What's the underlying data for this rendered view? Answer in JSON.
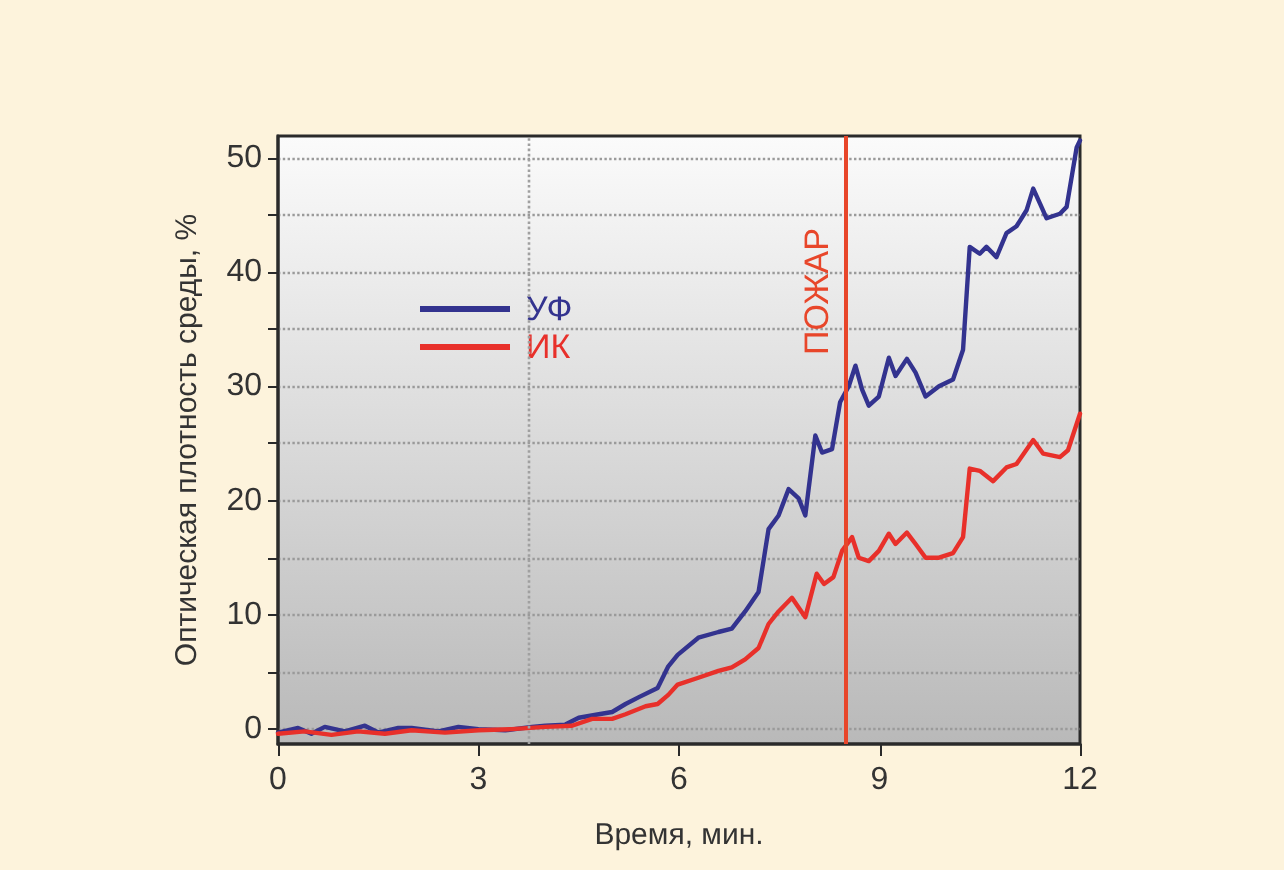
{
  "chart_data": {
    "type": "line",
    "xlabel": "Время, мин.",
    "ylabel": "Оптическая плотность среды, %",
    "xlim": [
      0,
      12
    ],
    "xticks": [
      0,
      3,
      6,
      9,
      12
    ],
    "ylim": [
      -1.3,
      51.9
    ],
    "yticks": [
      0,
      {
        "value": 5,
        "label": null
      },
      10,
      {
        "value": 15,
        "label": null
      },
      20,
      {
        "value": 25,
        "label": null
      },
      30,
      {
        "value": 35,
        "label": null
      },
      40,
      {
        "value": 45,
        "label": null
      },
      50
    ],
    "grid": "y",
    "legend": "top left",
    "marker": "none",
    "series": [
      {
        "name": "УФ",
        "color": "#33338f",
        "x": [
          0,
          0.3,
          0.5,
          0.7,
          1.0,
          1.3,
          1.5,
          1.8,
          2.0,
          2.4,
          2.7,
          3.0,
          3.4,
          3.8,
          4.0,
          4.3,
          4.5,
          4.8,
          5.0,
          5.2,
          5.4,
          5.68,
          5.84,
          5.98,
          6.29,
          6.59,
          6.79,
          6.99,
          7.19,
          7.34,
          7.49,
          7.64,
          7.79,
          7.89,
          8.04,
          8.14,
          8.29,
          8.41,
          8.54,
          8.64,
          8.74,
          8.84,
          8.99,
          9.14,
          9.24,
          9.41,
          9.54,
          9.69,
          9.89,
          10.1,
          10.25,
          10.35,
          10.5,
          10.6,
          10.75,
          10.9,
          11.05,
          11.2,
          11.3,
          11.4,
          11.5,
          11.7,
          11.8,
          11.95,
          12
        ],
        "values": [
          -0.3,
          0.1,
          -0.4,
          0.2,
          -0.2,
          0.3,
          -0.3,
          0.1,
          0.1,
          -0.2,
          0.2,
          0,
          -0.1,
          0.2,
          0.3,
          0.4,
          1.0,
          1.3,
          1.5,
          2.2,
          2.8,
          3.6,
          5.5,
          6.5,
          8.0,
          8.5,
          8.8,
          10.3,
          12.0,
          17.5,
          18.7,
          21.0,
          20.2,
          18.7,
          25.7,
          24.2,
          24.5,
          28.6,
          30.0,
          31.8,
          29.7,
          28.3,
          29.1,
          32.5,
          30.9,
          32.4,
          31.2,
          29.1,
          30.0,
          30.6,
          33.2,
          42.2,
          41.6,
          42.2,
          41.3,
          43.4,
          44.0,
          45.4,
          47.3,
          46.0,
          44.7,
          45.1,
          45.7,
          50.9,
          51.5
        ]
      },
      {
        "name": "ИК",
        "color": "#e8302a",
        "x": [
          0,
          0.4,
          0.8,
          1.2,
          1.6,
          2.0,
          2.5,
          3.0,
          3.5,
          4.0,
          4.4,
          4.7,
          5.0,
          5.2,
          5.5,
          5.68,
          5.84,
          5.98,
          6.29,
          6.59,
          6.79,
          6.99,
          7.19,
          7.34,
          7.49,
          7.69,
          7.89,
          8.06,
          8.17,
          8.31,
          8.44,
          8.59,
          8.69,
          8.84,
          8.99,
          9.14,
          9.24,
          9.41,
          9.54,
          9.69,
          9.89,
          10.1,
          10.25,
          10.35,
          10.5,
          10.7,
          10.9,
          11.05,
          11.3,
          11.45,
          11.7,
          11.82,
          12
        ],
        "values": [
          -0.4,
          -0.2,
          -0.5,
          -0.2,
          -0.4,
          -0.1,
          -0.3,
          -0.1,
          0,
          0.2,
          0.3,
          0.9,
          0.9,
          1.3,
          2.0,
          2.2,
          3.0,
          3.9,
          4.5,
          5.1,
          5.4,
          6.1,
          7.1,
          9.2,
          10.3,
          11.5,
          9.8,
          13.6,
          12.7,
          13.3,
          15.6,
          16.8,
          15.0,
          14.7,
          15.6,
          17.1,
          16.2,
          17.2,
          16.2,
          15.0,
          15.0,
          15.4,
          16.8,
          22.8,
          22.6,
          21.7,
          22.9,
          23.2,
          25.3,
          24.1,
          23.8,
          24.4,
          27.6
        ]
      }
    ],
    "ref_lines": [
      {
        "axis": "x",
        "value": 3.75,
        "label": null,
        "color": "#a0a0a0",
        "line_style": "dotted"
      },
      {
        "axis": "x",
        "value": 8.5,
        "label": "ПОЖАР",
        "color": "#e8462a",
        "line_style": "solid"
      }
    ]
  }
}
